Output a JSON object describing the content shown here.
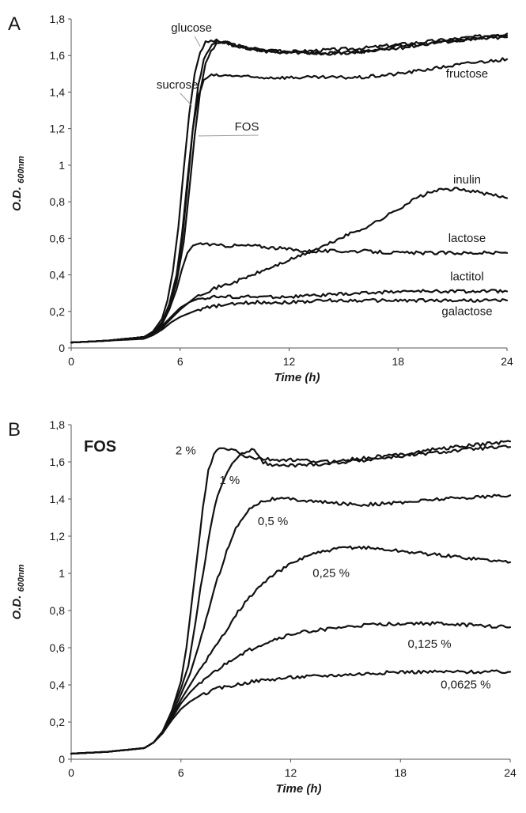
{
  "chart_data": [
    {
      "type": "line",
      "panel": "A",
      "title": "",
      "xlabel": "Time (h)",
      "ylabel_main": "O.D.",
      "ylabel_sub": "600nm",
      "xlim": [
        0,
        24
      ],
      "ylim": [
        0,
        1.8
      ],
      "x_ticks": [
        0,
        6,
        12,
        18,
        24
      ],
      "x_tick_labels": [
        "0",
        "6",
        "12",
        "18",
        "24"
      ],
      "y_ticks": [
        0,
        0.2,
        0.4,
        0.6,
        0.8,
        1,
        1.2,
        1.4,
        1.6,
        1.8
      ],
      "y_tick_labels": [
        "0",
        "0,2",
        "0,4",
        "0,6",
        "0,8",
        "1",
        "1,2",
        "1,4",
        "1,6",
        "1,8"
      ],
      "grid": false,
      "series": [
        {
          "name": "glucose",
          "x": [
            0,
            2,
            4,
            4.5,
            5,
            5.3,
            5.6,
            5.9,
            6.2,
            6.5,
            6.8,
            7.1,
            7.4,
            7.7,
            8,
            8.5,
            9,
            10,
            11,
            12,
            14,
            16,
            18,
            20,
            22,
            24
          ],
          "y": [
            0.03,
            0.04,
            0.06,
            0.09,
            0.16,
            0.26,
            0.42,
            0.66,
            0.98,
            1.28,
            1.5,
            1.62,
            1.67,
            1.68,
            1.68,
            1.67,
            1.66,
            1.63,
            1.62,
            1.62,
            1.63,
            1.64,
            1.66,
            1.68,
            1.7,
            1.72
          ]
        },
        {
          "name": "sucrose",
          "x": [
            0,
            2,
            4,
            4.5,
            5,
            5.4,
            5.8,
            6.1,
            6.4,
            6.7,
            7,
            7.3,
            7.6,
            7.9,
            8.2,
            8.6,
            9,
            10,
            11,
            12,
            14,
            16,
            18,
            20,
            22,
            24
          ],
          "y": [
            0.03,
            0.04,
            0.06,
            0.08,
            0.14,
            0.23,
            0.38,
            0.58,
            0.88,
            1.2,
            1.44,
            1.58,
            1.64,
            1.67,
            1.68,
            1.67,
            1.65,
            1.64,
            1.63,
            1.62,
            1.61,
            1.62,
            1.65,
            1.67,
            1.69,
            1.71
          ]
        },
        {
          "name": "FOS",
          "x": [
            0,
            2,
            4,
            4.5,
            5,
            5.4,
            5.8,
            6.2,
            6.5,
            6.8,
            7.1,
            7.4,
            7.7,
            8,
            8.4,
            8.8,
            9.5,
            10.5,
            11.5,
            12,
            14,
            16,
            18,
            20,
            22,
            24
          ],
          "y": [
            0.03,
            0.04,
            0.06,
            0.08,
            0.13,
            0.22,
            0.36,
            0.58,
            0.86,
            1.16,
            1.4,
            1.55,
            1.62,
            1.66,
            1.67,
            1.66,
            1.64,
            1.63,
            1.62,
            1.62,
            1.61,
            1.62,
            1.64,
            1.67,
            1.69,
            1.7
          ]
        },
        {
          "name": "fructose",
          "x": [
            0,
            2,
            4,
            4.5,
            5,
            5.4,
            5.8,
            6.1,
            6.4,
            6.7,
            7,
            7.3,
            7.6,
            8,
            9,
            10,
            12,
            14,
            16,
            18,
            20,
            22,
            24
          ],
          "y": [
            0.03,
            0.04,
            0.06,
            0.08,
            0.14,
            0.24,
            0.4,
            0.62,
            0.92,
            1.2,
            1.38,
            1.46,
            1.49,
            1.49,
            1.49,
            1.48,
            1.48,
            1.48,
            1.48,
            1.5,
            1.53,
            1.56,
            1.58
          ]
        },
        {
          "name": "inulin",
          "x": [
            0,
            2,
            4,
            4.5,
            5,
            5.5,
            6,
            6.5,
            7,
            8,
            9,
            10,
            11,
            12,
            13,
            14,
            15,
            16,
            17,
            18,
            19,
            20,
            21,
            22,
            23,
            24
          ],
          "y": [
            0.03,
            0.04,
            0.06,
            0.08,
            0.11,
            0.16,
            0.21,
            0.25,
            0.29,
            0.33,
            0.36,
            0.4,
            0.44,
            0.48,
            0.52,
            0.56,
            0.61,
            0.65,
            0.7,
            0.76,
            0.82,
            0.86,
            0.87,
            0.86,
            0.84,
            0.82
          ]
        },
        {
          "name": "lactose",
          "x": [
            0,
            2,
            4,
            4.5,
            5,
            5.4,
            5.8,
            6.1,
            6.4,
            6.7,
            7,
            7.5,
            8,
            9,
            10,
            11,
            12,
            13,
            14,
            15,
            16,
            18,
            20,
            22,
            24
          ],
          "y": [
            0.03,
            0.04,
            0.06,
            0.08,
            0.13,
            0.21,
            0.32,
            0.43,
            0.52,
            0.56,
            0.57,
            0.57,
            0.56,
            0.56,
            0.56,
            0.55,
            0.54,
            0.53,
            0.53,
            0.53,
            0.53,
            0.52,
            0.52,
            0.52,
            0.52
          ]
        },
        {
          "name": "lactitol",
          "x": [
            0,
            2,
            4,
            4.5,
            5,
            5.5,
            6,
            6.5,
            7,
            8,
            9,
            10,
            12,
            14,
            16,
            18,
            20,
            22,
            24
          ],
          "y": [
            0.03,
            0.04,
            0.06,
            0.08,
            0.12,
            0.17,
            0.22,
            0.25,
            0.27,
            0.28,
            0.28,
            0.28,
            0.28,
            0.29,
            0.3,
            0.31,
            0.31,
            0.31,
            0.31
          ]
        },
        {
          "name": "galactose",
          "x": [
            0,
            2,
            4,
            4.5,
            5,
            5.5,
            6,
            6.5,
            7,
            8,
            9,
            10,
            12,
            14,
            16,
            18,
            20,
            22,
            24
          ],
          "y": [
            0.03,
            0.04,
            0.05,
            0.07,
            0.1,
            0.14,
            0.17,
            0.19,
            0.21,
            0.23,
            0.24,
            0.25,
            0.25,
            0.26,
            0.26,
            0.26,
            0.26,
            0.26,
            0.26
          ]
        }
      ],
      "labels": [
        {
          "text": "glucose",
          "x": 5.5,
          "y": 1.73,
          "leader_to": [
            7.1,
            1.65
          ]
        },
        {
          "text": "sucrose",
          "x": 4.7,
          "y": 1.42,
          "leader_to": [
            6.6,
            1.33
          ]
        },
        {
          "text": "FOS",
          "x": 9.0,
          "y": 1.19,
          "leader_to": [
            7.0,
            1.16
          ]
        },
        {
          "text": "fructose",
          "x": 21.8,
          "y": 1.48
        },
        {
          "text": "inulin",
          "x": 21.8,
          "y": 0.9
        },
        {
          "text": "lactose",
          "x": 21.8,
          "y": 0.58
        },
        {
          "text": "lactitol",
          "x": 21.8,
          "y": 0.37
        },
        {
          "text": "galactose",
          "x": 21.8,
          "y": 0.18
        }
      ]
    },
    {
      "type": "line",
      "panel": "B",
      "title": "FOS",
      "xlabel": "Time (h)",
      "ylabel_main": "O.D.",
      "ylabel_sub": "600nm",
      "xlim": [
        0,
        24
      ],
      "ylim": [
        0,
        1.8
      ],
      "x_ticks": [
        0,
        6,
        12,
        18,
        24
      ],
      "x_tick_labels": [
        "0",
        "6",
        "12",
        "18",
        "24"
      ],
      "y_ticks": [
        0,
        0.2,
        0.4,
        0.6,
        0.8,
        1,
        1.2,
        1.4,
        1.6,
        1.8
      ],
      "y_tick_labels": [
        "0",
        "0,2",
        "0,4",
        "0,6",
        "0,8",
        "1",
        "1,2",
        "1,4",
        "1,6",
        "1,8"
      ],
      "grid": false,
      "series": [
        {
          "name": "2 %",
          "x": [
            0,
            2,
            4,
            4.5,
            5,
            5.5,
            6,
            6.3,
            6.6,
            6.9,
            7.2,
            7.5,
            7.8,
            8.1,
            8.5,
            9,
            9.5,
            10,
            11,
            12,
            14,
            16,
            18,
            20,
            22,
            24
          ],
          "y": [
            0.03,
            0.04,
            0.06,
            0.09,
            0.15,
            0.26,
            0.42,
            0.6,
            0.85,
            1.1,
            1.35,
            1.55,
            1.64,
            1.67,
            1.67,
            1.66,
            1.63,
            1.62,
            1.61,
            1.61,
            1.6,
            1.62,
            1.64,
            1.67,
            1.69,
            1.71
          ]
        },
        {
          "name": "1 %",
          "x": [
            0,
            2,
            4,
            4.5,
            5,
            5.5,
            6,
            6.4,
            6.8,
            7.2,
            7.6,
            8,
            8.4,
            8.8,
            9.2,
            9.6,
            10,
            10.5,
            11,
            12,
            14,
            16,
            18,
            20,
            22,
            24
          ],
          "y": [
            0.03,
            0.04,
            0.06,
            0.09,
            0.15,
            0.26,
            0.38,
            0.5,
            0.74,
            1.0,
            1.24,
            1.42,
            1.52,
            1.59,
            1.63,
            1.66,
            1.67,
            1.6,
            1.58,
            1.58,
            1.59,
            1.61,
            1.63,
            1.65,
            1.67,
            1.68
          ]
        },
        {
          "name": "0,5 %",
          "x": [
            0,
            2,
            4,
            4.5,
            5,
            5.5,
            6,
            6.5,
            7,
            7.5,
            8,
            8.5,
            9,
            9.5,
            10,
            10.5,
            11,
            12,
            13,
            14,
            16,
            18,
            20,
            22,
            24
          ],
          "y": [
            0.03,
            0.04,
            0.06,
            0.09,
            0.14,
            0.24,
            0.35,
            0.46,
            0.62,
            0.8,
            0.97,
            1.12,
            1.24,
            1.32,
            1.37,
            1.39,
            1.4,
            1.4,
            1.39,
            1.38,
            1.37,
            1.38,
            1.4,
            1.41,
            1.42
          ]
        },
        {
          "name": "0,25 %",
          "x": [
            0,
            2,
            4,
            4.5,
            5,
            5.5,
            6,
            6.5,
            7,
            7.5,
            8,
            9,
            10,
            11,
            12,
            13,
            14,
            15,
            16,
            18,
            20,
            22,
            24
          ],
          "y": [
            0.03,
            0.04,
            0.06,
            0.09,
            0.14,
            0.23,
            0.32,
            0.4,
            0.48,
            0.55,
            0.62,
            0.78,
            0.9,
            0.99,
            1.05,
            1.1,
            1.12,
            1.14,
            1.14,
            1.12,
            1.1,
            1.08,
            1.06
          ]
        },
        {
          "name": "0,125 %",
          "x": [
            0,
            2,
            4,
            4.5,
            5,
            5.5,
            6,
            6.5,
            7,
            8,
            9,
            10,
            11,
            12,
            13,
            14,
            15,
            16,
            18,
            20,
            22,
            24
          ],
          "y": [
            0.03,
            0.04,
            0.06,
            0.09,
            0.14,
            0.22,
            0.3,
            0.36,
            0.41,
            0.48,
            0.55,
            0.6,
            0.64,
            0.67,
            0.69,
            0.7,
            0.71,
            0.72,
            0.73,
            0.73,
            0.72,
            0.71
          ]
        },
        {
          "name": "0,0625 %",
          "x": [
            0,
            2,
            4,
            4.5,
            5,
            5.5,
            6,
            6.5,
            7,
            8,
            9,
            10,
            11,
            12,
            14,
            16,
            18,
            20,
            22,
            24
          ],
          "y": [
            0.03,
            0.04,
            0.06,
            0.09,
            0.14,
            0.21,
            0.27,
            0.31,
            0.34,
            0.38,
            0.4,
            0.42,
            0.43,
            0.44,
            0.45,
            0.46,
            0.47,
            0.47,
            0.47,
            0.47
          ]
        }
      ],
      "labels": [
        {
          "text": "2 %",
          "x": 5.7,
          "y": 1.64
        },
        {
          "text": "1 %",
          "x": 8.1,
          "y": 1.48
        },
        {
          "text": "0,5 %",
          "x": 10.2,
          "y": 1.26
        },
        {
          "text": "0,25 %",
          "x": 13.2,
          "y": 0.98
        },
        {
          "text": "0,125 %",
          "x": 18.4,
          "y": 0.6
        },
        {
          "text": "0,0625 %",
          "x": 20.2,
          "y": 0.38
        }
      ]
    }
  ]
}
